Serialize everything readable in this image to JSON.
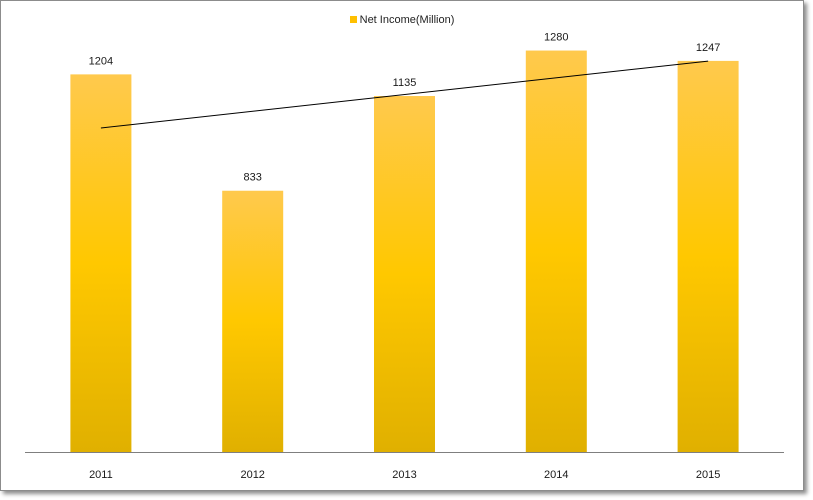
{
  "chart_data": {
    "type": "bar",
    "categories": [
      "2011",
      "2012",
      "2013",
      "2014",
      "2015"
    ],
    "series": [
      {
        "name": "Net Income(Million)",
        "values": [
          1204,
          833,
          1135,
          1280,
          1247
        ]
      }
    ],
    "trendline": {
      "type": "linear",
      "series": "Net Income(Million)"
    },
    "ylim": [
      0,
      1320
    ],
    "grid": false,
    "legend_position": "top",
    "colors": {
      "bar_top": "#FFC94D",
      "bar_mid": "#FFC800",
      "bar_bottom": "#E0B000",
      "legend": "#FFC000",
      "trendline": "#000000",
      "axis": "#7f7f7f"
    }
  }
}
